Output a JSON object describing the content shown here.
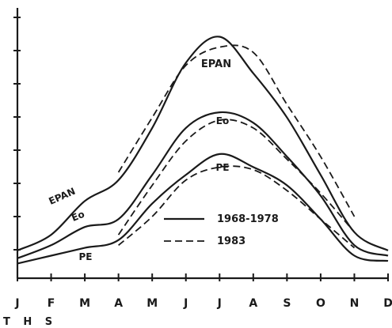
{
  "chart_data": {
    "type": "line",
    "x": [
      "J",
      "F",
      "M",
      "A",
      "M",
      "J",
      "J",
      "A",
      "S",
      "O",
      "N",
      "D"
    ],
    "footer_text": "T H S",
    "legend": {
      "placement": "center-right",
      "entries": [
        {
          "label": "1968-1978",
          "style": "solid"
        },
        {
          "label": "1983",
          "style": "dashed"
        }
      ]
    },
    "ylim": [
      0,
      10
    ],
    "yticks": [
      0,
      1,
      2,
      3,
      4,
      5,
      6,
      7,
      8
    ],
    "series": [
      {
        "name": "EPAN",
        "period": "1968-1978",
        "style": "solid",
        "values": [
          0.7,
          1.3,
          2.6,
          3.4,
          5.4,
          7.9,
          8.9,
          7.5,
          5.8,
          3.6,
          1.4,
          0.7
        ]
      },
      {
        "name": "EPAN",
        "period": "1983",
        "style": "dashed",
        "values": [
          null,
          null,
          null,
          3.7,
          5.8,
          7.8,
          8.5,
          8.3,
          6.3,
          4.3,
          2.0,
          null
        ]
      },
      {
        "name": "Eo",
        "period": "1968-1978",
        "style": "solid",
        "values": [
          0.4,
          0.9,
          1.6,
          1.9,
          3.6,
          5.4,
          6.0,
          5.6,
          4.3,
          2.8,
          0.9,
          0.5
        ]
      },
      {
        "name": "Eo",
        "period": "1983",
        "style": "dashed",
        "values": [
          null,
          null,
          null,
          1.3,
          3.2,
          4.9,
          5.7,
          5.4,
          4.2,
          2.9,
          1.4,
          null
        ]
      },
      {
        "name": "PE",
        "period": "1968-1978",
        "style": "solid",
        "values": [
          0.2,
          0.5,
          0.8,
          1.1,
          2.5,
          3.6,
          4.4,
          3.9,
          3.2,
          1.9,
          0.5,
          0.3
        ]
      },
      {
        "name": "PE",
        "period": "1983",
        "style": "dashed",
        "values": [
          null,
          null,
          null,
          0.9,
          2.0,
          3.4,
          3.9,
          3.8,
          3.0,
          1.9,
          0.8,
          null
        ]
      }
    ],
    "series_labels": [
      "EPAN",
      "Eo",
      "PE"
    ],
    "grid": false
  }
}
